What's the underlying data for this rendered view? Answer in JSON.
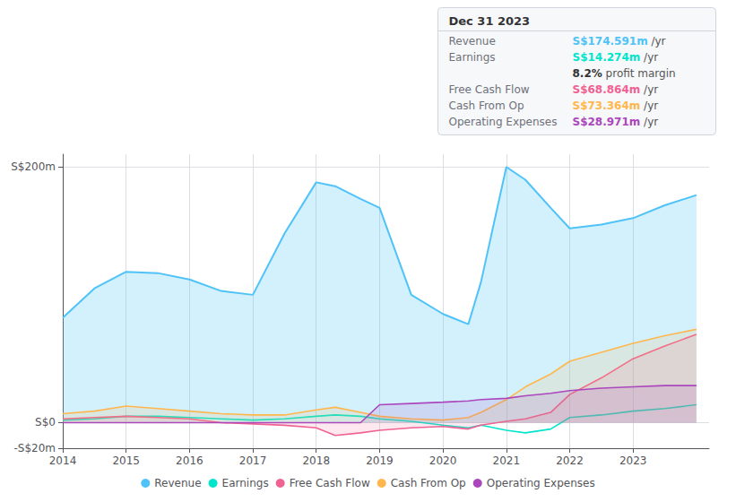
{
  "chart_data": {
    "type": "line",
    "x": [
      2014,
      2014.5,
      2015,
      2015.5,
      2016,
      2016.5,
      2017,
      2017.5,
      2018,
      2018.3,
      2018.7,
      2019,
      2019.5,
      2020,
      2020.4,
      2020.6,
      2021,
      2021.3,
      2021.7,
      2022,
      2022.5,
      2023,
      2023.5,
      2024
    ],
    "series": [
      {
        "name": "Revenue",
        "color": "#4fc3f7",
        "values": [
          82,
          105,
          118,
          117,
          112,
          103,
          100,
          148,
          188,
          185,
          175,
          168,
          100,
          85,
          77,
          110,
          200,
          190,
          168,
          152,
          155,
          160,
          170,
          178
        ]
      },
      {
        "name": "Earnings",
        "color": "#00e5cc",
        "values": [
          2,
          3,
          5,
          5,
          4,
          3,
          2,
          3,
          5,
          6,
          5,
          3,
          1,
          -2,
          -4,
          -2,
          -6,
          -8,
          -5,
          4,
          6,
          9,
          11,
          14
        ]
      },
      {
        "name": "Free Cash Flow",
        "color": "#f06292",
        "values": [
          3,
          4,
          5,
          4,
          3,
          0,
          -1,
          -2,
          -4,
          -10,
          -8,
          -6,
          -4,
          -3,
          -5,
          -2,
          1,
          3,
          8,
          22,
          35,
          50,
          60,
          69
        ]
      },
      {
        "name": "Cash From Op",
        "color": "#ffb74d",
        "values": [
          7,
          9,
          13,
          11,
          9,
          7,
          6,
          6,
          10,
          12,
          8,
          5,
          3,
          2,
          4,
          8,
          18,
          28,
          38,
          48,
          55,
          62,
          68,
          73
        ]
      },
      {
        "name": "Operating Expenses",
        "color": "#ab47bc",
        "values": [
          0,
          0,
          0,
          0,
          0,
          0,
          0,
          0,
          0,
          0,
          0,
          14,
          15,
          16,
          17,
          18,
          19,
          21,
          23,
          25,
          27,
          28,
          29,
          29
        ]
      }
    ],
    "xlim": [
      2014,
      2024.2
    ],
    "xticks": [
      2014,
      2015,
      2016,
      2017,
      2018,
      2019,
      2020,
      2021,
      2022,
      2023
    ],
    "ylim": [
      -20,
      210
    ],
    "yticks": [
      {
        "value": -20,
        "label": "-S$20m"
      },
      {
        "value": 0,
        "label": "S$0"
      },
      {
        "value": 200,
        "label": "S$200m"
      }
    ],
    "grid": true,
    "legend": "bottom",
    "annotations": {
      "title": "Dec 31 2023",
      "rows": [
        {
          "label": "Revenue",
          "value": "S$174.591m",
          "suffix": " /yr",
          "color": "#4fc3f7"
        },
        {
          "label": "Earnings",
          "value": "S$14.274m",
          "suffix": " /yr",
          "color": "#00e5cc"
        },
        {
          "value": "8.2%",
          "suffix": " profit margin"
        },
        {
          "label": "Free Cash Flow",
          "value": "S$68.864m",
          "suffix": " /yr",
          "color": "#f06292"
        },
        {
          "label": "Cash From Op",
          "value": "S$73.364m",
          "suffix": " /yr",
          "color": "#ffb74d"
        },
        {
          "label": "Operating Expenses",
          "value": "S$28.971m",
          "suffix": " /yr",
          "color": "#ab47bc"
        }
      ]
    }
  }
}
